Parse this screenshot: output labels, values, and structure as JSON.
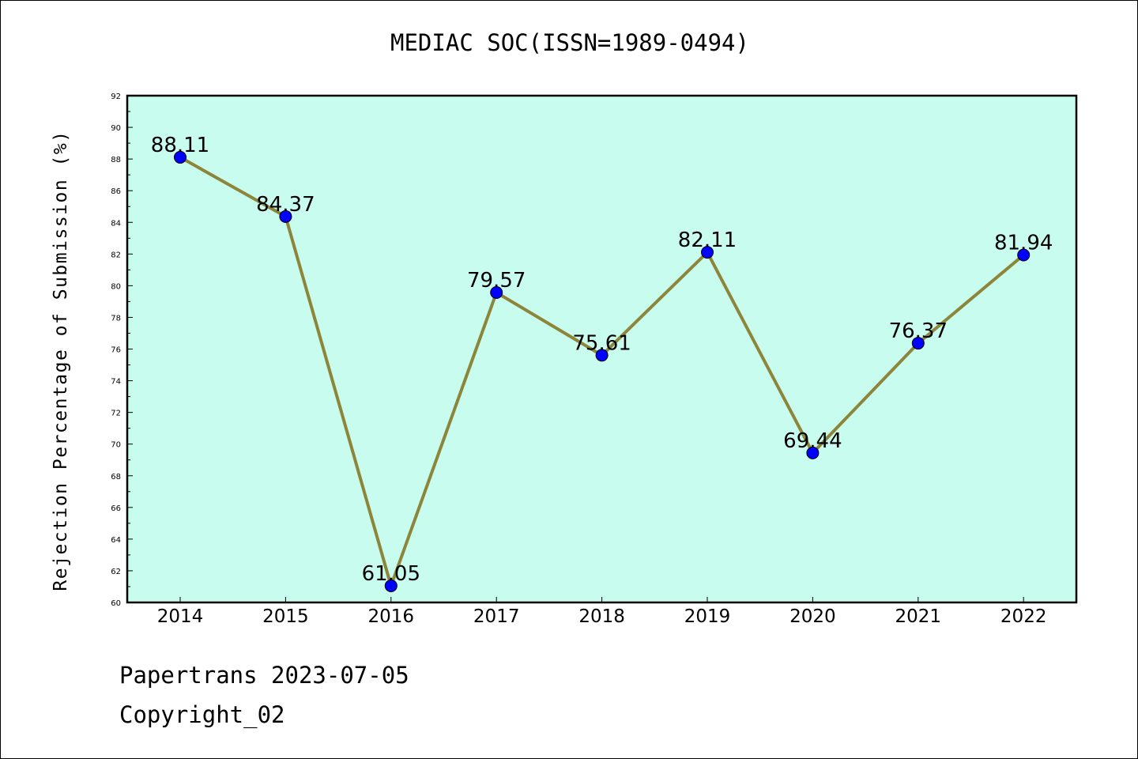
{
  "chart_data": {
    "type": "line",
    "title": "MEDIAC SOC(ISSN=1989-0494)",
    "xlabel": "",
    "ylabel": "Rejection Percentage of Submission (%)",
    "categories": [
      "2014",
      "2015",
      "2016",
      "2017",
      "2018",
      "2019",
      "2020",
      "2021",
      "2022"
    ],
    "values": [
      88.11,
      84.37,
      61.05,
      79.57,
      75.61,
      82.11,
      69.44,
      76.37,
      81.94
    ],
    "data_labels": [
      "88.11",
      "84.37",
      "61.05",
      "79.57",
      "75.61",
      "82.11",
      "69.44",
      "76.37",
      "81.94"
    ],
    "ylim": [
      60,
      92
    ],
    "y_ticks": [
      "60",
      "62",
      "64",
      "66",
      "68",
      "70",
      "72",
      "74",
      "76",
      "78",
      "80",
      "82",
      "84",
      "86",
      "88",
      "90",
      "92"
    ],
    "grid": false,
    "legend": "none",
    "colors": {
      "plot_background": "#c8fcee",
      "line": "#8c853a",
      "marker": "#0000ff",
      "axes": "#000000"
    }
  },
  "footer": {
    "line1": "Papertrans 2023-07-05",
    "line2": "Copyright_02"
  }
}
